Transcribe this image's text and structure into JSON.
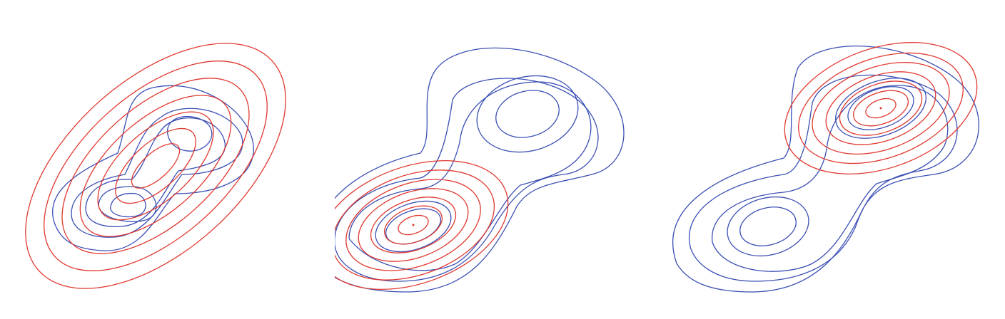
{
  "colors": {
    "background": "#ffffff",
    "target_contours": "#3b4fb4",
    "approximation_contours": "#e0382f"
  },
  "panels": [
    {
      "name": "panel-moment-matching",
      "target": {
        "type": "bimodal",
        "modes": [
          {
            "center": [
              -0.9,
              -0.9
            ],
            "angle": -15
          },
          {
            "center": [
              0.9,
              0.9
            ],
            "angle": -15
          }
        ],
        "levels": 5
      },
      "approximation": {
        "type": "gaussian",
        "center": [
          0,
          0
        ],
        "angle": -40,
        "levels": 7,
        "spread": "wide"
      }
    },
    {
      "name": "panel-lower-mode",
      "target": {
        "type": "bimodal",
        "modes": [
          {
            "center": [
              -0.9,
              -0.9
            ],
            "angle": -15
          },
          {
            "center": [
              0.9,
              0.9
            ],
            "angle": -15
          }
        ],
        "levels": 5
      },
      "approximation": {
        "type": "gaussian",
        "center": [
          -0.9,
          -0.9
        ],
        "angle": -15,
        "levels": 7,
        "spread": "narrow"
      }
    },
    {
      "name": "panel-upper-mode",
      "target": {
        "type": "bimodal",
        "modes": [
          {
            "center": [
              -0.9,
              -0.9
            ],
            "angle": -15
          },
          {
            "center": [
              0.9,
              0.9
            ],
            "angle": -15
          }
        ],
        "levels": 5
      },
      "approximation": {
        "type": "gaussian",
        "center": [
          0.9,
          0.9
        ],
        "angle": -15,
        "levels": 7,
        "spread": "narrow"
      }
    }
  ]
}
